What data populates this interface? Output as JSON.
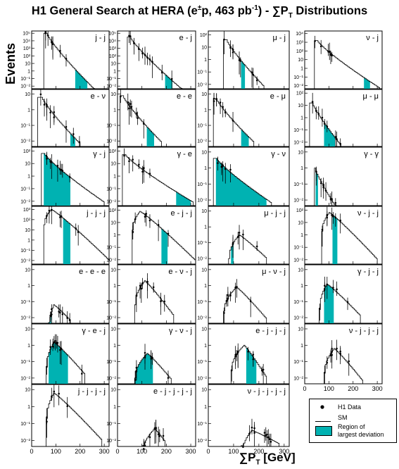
{
  "title": {
    "prefix": "H1 General Search at HERA (e",
    "sup1": "±",
    "mid": "p, 463 pb",
    "sup2": "-1",
    "suffix": ") - ∑P",
    "sub": "T",
    "end": " Distributions"
  },
  "ylabel": "Events",
  "xlabel": {
    "main": "∑P",
    "sub": "T",
    "end": " [GeV]"
  },
  "x_tick_labels": [
    "0",
    "100",
    "200",
    "300"
  ],
  "y_tick_labels": [
    "10⁻²",
    "10⁻¹",
    "1",
    "10",
    "10²",
    "10³",
    "10⁴",
    "10⁵"
  ],
  "legend": {
    "data_label": "H1 Data",
    "sm_label": "SM",
    "region_label_1": "Region of",
    "region_label_2": "largest deviation"
  },
  "colors": {
    "region": "#00b2b2",
    "line": "#000000"
  },
  "chart_data": {
    "type": "histogram-grid",
    "x_axis_range": [
      0,
      320
    ],
    "y_scale": "log",
    "panels": [
      {
        "label": "j - j",
        "ymax_exp": 5,
        "ymin_exp": -2,
        "shape": "falling",
        "start": 50,
        "peak": 60,
        "end": 260,
        "peak_exp": 5,
        "drop": 7.5,
        "region": [
          180,
          230
        ]
      },
      {
        "label": "e - j",
        "ymax_exp": 5,
        "ymin_exp": -2,
        "shape": "falling",
        "start": 40,
        "peak": 50,
        "end": 265,
        "peak_exp": 4.5,
        "drop": 7,
        "region": [
          195,
          225
        ]
      },
      {
        "label": "μ - j",
        "ymax_exp": 2,
        "ymin_exp": -2,
        "shape": "falling",
        "start": 60,
        "peak": 70,
        "end": 220,
        "peak_exp": 1.6,
        "drop": 3.8,
        "region": [
          130,
          145
        ]
      },
      {
        "label": "ν - j",
        "ymax_exp": 4,
        "ymin_exp": -2,
        "shape": "falling",
        "start": 40,
        "peak": 50,
        "end": 310,
        "peak_exp": 3.2,
        "drop": 5.5,
        "region": [
          245,
          270
        ]
      },
      {
        "label": "e - ν",
        "ymax_exp": 1,
        "ymin_exp": -2,
        "shape": "falling",
        "start": 25,
        "peak": 40,
        "end": 200,
        "peak_exp": 0.8,
        "drop": 3,
        "region": [
          160,
          180
        ]
      },
      {
        "label": "e - e",
        "ymax_exp": 1,
        "ymin_exp": -2,
        "shape": "falling",
        "start": 10,
        "peak": 20,
        "end": 180,
        "peak_exp": 0.9,
        "drop": 3,
        "region": [
          120,
          150
        ]
      },
      {
        "label": "e - μ",
        "ymax_exp": 1,
        "ymin_exp": -2,
        "shape": "falling",
        "start": 20,
        "peak": 30,
        "end": 180,
        "peak_exp": 0.7,
        "drop": 2.8,
        "region": [
          130,
          160
        ]
      },
      {
        "label": "μ - μ",
        "ymax_exp": 2,
        "ymin_exp": -2,
        "shape": "falling",
        "start": 20,
        "peak": 30,
        "end": 150,
        "peak_exp": 1.2,
        "drop": 3.5,
        "region": [
          80,
          125
        ]
      },
      {
        "label": "γ - j",
        "ymax_exp": 2,
        "ymin_exp": -2,
        "shape": "falling",
        "start": 40,
        "peak": 50,
        "end": 300,
        "peak_exp": 1.8,
        "drop": 3.9,
        "region": [
          50,
          160
        ]
      },
      {
        "label": "γ - e",
        "ymax_exp": 2,
        "ymin_exp": -2,
        "shape": "falling",
        "start": 20,
        "peak": 30,
        "end": 310,
        "peak_exp": 1.7,
        "drop": 3.8,
        "region": [
          240,
          300
        ]
      },
      {
        "label": "γ - ν",
        "ymax_exp": 1,
        "ymin_exp": -2,
        "shape": "falling",
        "start": 20,
        "peak": 30,
        "end": 250,
        "peak_exp": 0.6,
        "drop": 2.8,
        "region": [
          30,
          230
        ]
      },
      {
        "label": "γ - γ",
        "ymax_exp": 1,
        "ymin_exp": -2,
        "shape": "falling",
        "start": 40,
        "peak": 40,
        "end": 130,
        "peak_exp": 0,
        "drop": 2.5,
        "region": [
          45,
          55
        ]
      },
      {
        "label": "j - j - j",
        "ymax_exp": 3,
        "ymin_exp": -2,
        "shape": "hump",
        "start": 50,
        "peak": 80,
        "end": 320,
        "peak_exp": 3,
        "drop": 5,
        "region": [
          130,
          160
        ]
      },
      {
        "label": "e - j - j",
        "ymax_exp": 2,
        "ymin_exp": -2,
        "shape": "hump",
        "start": 60,
        "peak": 90,
        "end": 320,
        "peak_exp": 1.9,
        "drop": 4,
        "region": [
          180,
          205
        ]
      },
      {
        "label": "μ - j - j",
        "ymax_exp": 1,
        "ymin_exp": -2,
        "shape": "hump",
        "start": 80,
        "peak": 120,
        "end": 230,
        "peak_exp": -0.5,
        "drop": 1.5,
        "region": [
          90,
          100
        ]
      },
      {
        "label": "ν - j - j",
        "ymax_exp": 2,
        "ymin_exp": -2,
        "shape": "hump",
        "start": 70,
        "peak": 100,
        "end": 300,
        "peak_exp": 1.8,
        "drop": 3.8,
        "region": [
          115,
          135
        ]
      },
      {
        "label": "e - e - e",
        "ymax_exp": 1,
        "ymin_exp": -2,
        "shape": "hump",
        "start": 70,
        "peak": 90,
        "end": 160,
        "peak_exp": -1.2,
        "drop": 1,
        "region": [
          70,
          80
        ]
      },
      {
        "label": "e - ν - j",
        "ymax_exp": 1,
        "ymin_exp": -2,
        "shape": "hump",
        "start": 70,
        "peak": 110,
        "end": 230,
        "peak_exp": 0.3,
        "drop": 2.2,
        "region": null
      },
      {
        "label": "μ - ν - j",
        "ymax_exp": 1,
        "ymin_exp": -2,
        "shape": "hump",
        "start": 60,
        "peak": 110,
        "end": 230,
        "peak_exp": -0.1,
        "drop": 2,
        "region": null
      },
      {
        "label": "γ - j - j",
        "ymax_exp": 1,
        "ymin_exp": -2,
        "shape": "hump",
        "start": 60,
        "peak": 90,
        "end": 230,
        "peak_exp": 0.1,
        "drop": 2,
        "region": [
          80,
          120
        ]
      },
      {
        "label": "γ - e - j",
        "ymax_exp": 1,
        "ymin_exp": -2,
        "shape": "hump",
        "start": 60,
        "peak": 90,
        "end": 220,
        "peak_exp": 0.2,
        "drop": 2,
        "region": [
          70,
          150
        ]
      },
      {
        "label": "γ - ν - j",
        "ymax_exp": 1,
        "ymin_exp": -2,
        "shape": "hump",
        "start": 70,
        "peak": 120,
        "end": 220,
        "peak_exp": -0.5,
        "drop": 1.6,
        "region": [
          70,
          145
        ]
      },
      {
        "label": "e - j - j - j",
        "ymax_exp": 1,
        "ymin_exp": -2,
        "shape": "hump",
        "start": 90,
        "peak": 140,
        "end": 230,
        "peak_exp": 0,
        "drop": 2,
        "region": [
          150,
          190
        ]
      },
      {
        "label": "ν - j - j - j",
        "ymax_exp": 1,
        "ymin_exp": -2,
        "shape": "hump",
        "start": 80,
        "peak": 120,
        "end": 240,
        "peak_exp": -0.2,
        "drop": 2,
        "region": null
      },
      {
        "label": "j - j - j - j",
        "ymax_exp": 1,
        "ymin_exp": -2,
        "shape": "hump",
        "start": 60,
        "peak": 90,
        "end": 290,
        "peak_exp": 0.8,
        "drop": 2.8,
        "region": null
      },
      {
        "label": "e - j - j - j - j",
        "ymax_exp": 1,
        "ymin_exp": -2,
        "shape": "hump",
        "start": 100,
        "peak": 150,
        "end": 195,
        "peak_exp": -1.3,
        "drop": 0.8,
        "region": null
      },
      {
        "label": "ν - j - j - j - j",
        "ymax_exp": 1,
        "ymin_exp": -2,
        "shape": "hump",
        "start": 130,
        "peak": 170,
        "end": 280,
        "peak_exp": -1.4,
        "drop": 0.8,
        "region": null
      }
    ],
    "panel_labels_display": [
      "j - j",
      "e - j",
      "μ - j",
      "ν - j",
      "e - ν",
      "e - e",
      "e - μ",
      "μ - μ",
      "γ - j",
      "γ - e",
      "γ - ν",
      "γ - γ",
      "j - j - j",
      "e - j - j",
      "μ - j - j",
      "ν - j - j",
      "e - e - e",
      "e - ν - j",
      "μ - ν - j",
      "γ - j - j",
      "γ - e - j",
      "γ - ν - j",
      "e - j - j - j",
      "ν - j - j - j",
      "j - j - j - j",
      "e - j - j - j - j",
      "ν - j - j - j - j"
    ]
  }
}
